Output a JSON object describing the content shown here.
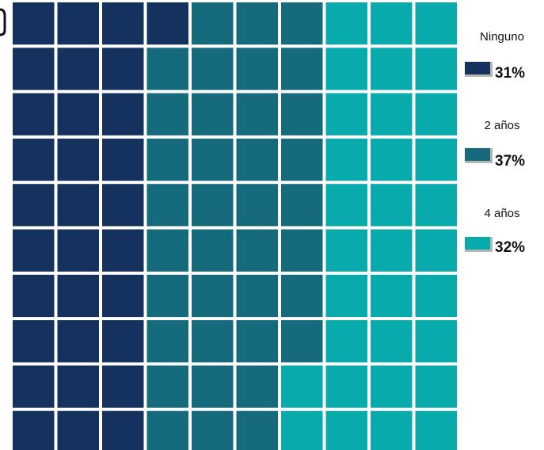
{
  "chart_data": {
    "type": "waffle",
    "grid": {
      "rows": 10,
      "cols": 10
    },
    "fill_order": "column-major, top-to-bottom",
    "series": [
      {
        "name": "Ninguno",
        "label": "31%",
        "value": 31,
        "color": "#15325f"
      },
      {
        "name": "2 años",
        "label": "37%",
        "value": 37,
        "color": "#156a7c"
      },
      {
        "name": "4 años",
        "label": "32%",
        "value": 32,
        "color": "#08aaac"
      }
    ],
    "legend_placement": "right"
  }
}
